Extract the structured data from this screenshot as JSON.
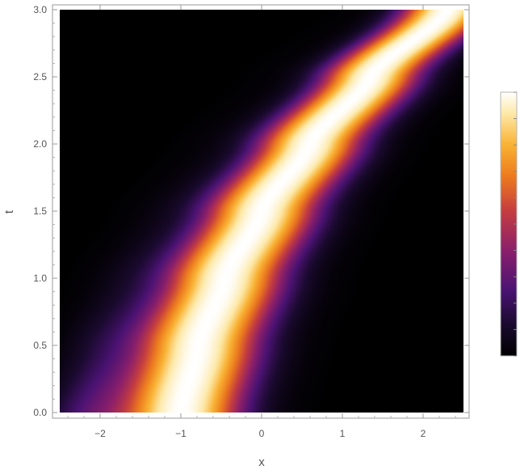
{
  "chart_data": {
    "type": "heatmap",
    "title": "",
    "xlabel": "x",
    "ylabel": "t",
    "xlim": [
      -2.5,
      2.5
    ],
    "ylim": [
      0.0,
      3.0
    ],
    "x_ticks": [
      -2,
      -1,
      0,
      1,
      2
    ],
    "x_tick_labels": [
      "−2",
      "−1",
      "0",
      "1",
      "2"
    ],
    "y_ticks": [
      0.0,
      0.5,
      1.0,
      1.5,
      2.0,
      2.5,
      3.0
    ],
    "y_tick_labels": [
      "0.0",
      "0.5",
      "1.0",
      "1.5",
      "2.0",
      "2.5",
      "3.0"
    ],
    "grid": false,
    "legend": "colorbar-right",
    "ridge": {
      "description_free": true,
      "t": [
        0.0,
        0.5,
        1.0,
        1.5,
        2.0,
        2.5,
        3.0
      ],
      "x_center": [
        -1.0,
        -0.78,
        -0.45,
        0.0,
        0.6,
        1.35,
        2.3
      ],
      "half_width": [
        0.65,
        0.65,
        0.63,
        0.6,
        0.56,
        0.52,
        0.48
      ]
    },
    "color_scale": {
      "name": "inferno-like",
      "stops": [
        "#000000",
        "#1a0a2e",
        "#4b1373",
        "#8a1f6b",
        "#c53d3f",
        "#ec7a1e",
        "#f9b233",
        "#fde9a8",
        "#ffffff"
      ]
    }
  }
}
